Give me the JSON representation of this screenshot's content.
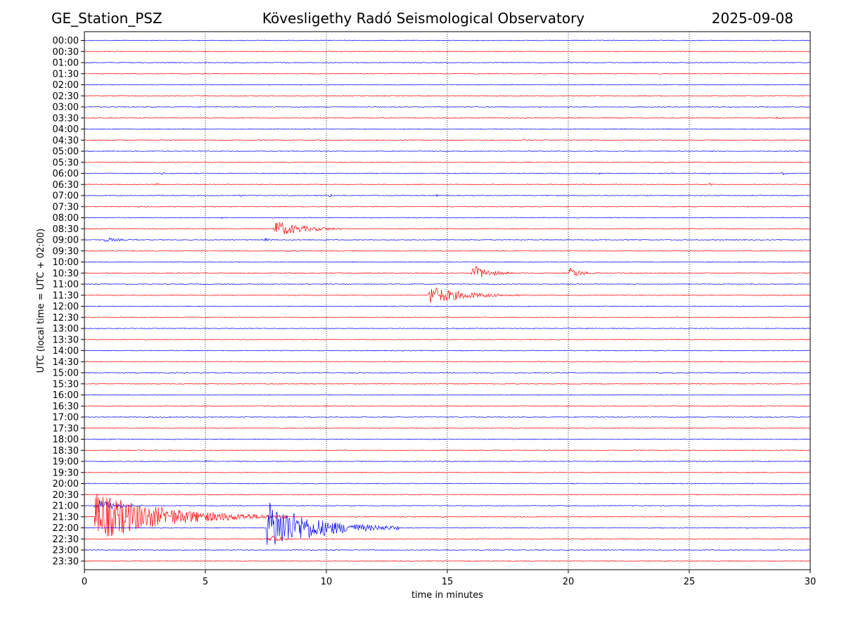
{
  "header": {
    "station": "GE_Station_PSZ",
    "observatory": "Kövesligethy Radó Seismological Observatory",
    "date": "2025-09-08"
  },
  "chart_data": {
    "type": "line",
    "title": "Kövesligethy Radó Seismological Observatory",
    "xlabel": "time in minutes",
    "ylabel": "UTC (local time = UTC + 02:00)",
    "xlim": [
      0,
      30
    ],
    "xticks": [
      0,
      5,
      10,
      15,
      20,
      25,
      30
    ],
    "grid": "vertical dotted",
    "colors": [
      "#0000ff",
      "#ff0000"
    ],
    "rows": [
      {
        "label": "00:00",
        "events": []
      },
      {
        "label": "00:30",
        "events": []
      },
      {
        "label": "01:00",
        "events": []
      },
      {
        "label": "01:30",
        "events": []
      },
      {
        "label": "02:00",
        "events": []
      },
      {
        "label": "02:30",
        "events": []
      },
      {
        "label": "03:00",
        "events": []
      },
      {
        "label": "03:30",
        "events": [
          {
            "t": 28.5,
            "dur": 0.4,
            "amp": 0.2
          }
        ]
      },
      {
        "label": "04:00",
        "events": []
      },
      {
        "label": "04:30",
        "events": [
          {
            "t": 19.0,
            "dur": 0.1,
            "amp": 0.2
          }
        ]
      },
      {
        "label": "05:00",
        "events": []
      },
      {
        "label": "05:30",
        "events": []
      },
      {
        "label": "06:00",
        "events": [
          {
            "t": 3.1,
            "dur": 0.3,
            "amp": 0.3
          },
          {
            "t": 21.2,
            "dur": 0.2,
            "amp": 0.3
          },
          {
            "t": 24.2,
            "dur": 0.2,
            "amp": 0.25
          },
          {
            "t": 25.8,
            "dur": 0.2,
            "amp": 0.25
          },
          {
            "t": 28.8,
            "dur": 0.3,
            "amp": 0.25
          }
        ]
      },
      {
        "label": "06:30",
        "events": [
          {
            "t": 2.9,
            "dur": 0.2,
            "amp": 0.25
          },
          {
            "t": 21.2,
            "dur": 0.2,
            "amp": 0.25
          },
          {
            "t": 25.8,
            "dur": 0.2,
            "amp": 0.35
          }
        ]
      },
      {
        "label": "07:00",
        "events": [
          {
            "t": 3.1,
            "dur": 0.2,
            "amp": 0.35
          },
          {
            "t": 6.4,
            "dur": 0.2,
            "amp": 0.35
          },
          {
            "t": 10.1,
            "dur": 0.2,
            "amp": 0.45
          },
          {
            "t": 14.5,
            "dur": 0.2,
            "amp": 0.25
          }
        ]
      },
      {
        "label": "07:30",
        "events": [
          {
            "t": 21.0,
            "dur": 0.1,
            "amp": 0.35
          }
        ]
      },
      {
        "label": "08:00",
        "events": [
          {
            "t": 5.6,
            "dur": 0.3,
            "amp": 0.2
          }
        ]
      },
      {
        "label": "08:30",
        "events": [
          {
            "t": 7.8,
            "dur": 3.0,
            "amp": 0.9
          }
        ]
      },
      {
        "label": "09:00",
        "events": [
          {
            "t": 0.8,
            "dur": 1.5,
            "amp": 0.25
          },
          {
            "t": 7.4,
            "dur": 0.6,
            "amp": 0.2
          }
        ]
      },
      {
        "label": "09:30",
        "events": []
      },
      {
        "label": "10:00",
        "events": []
      },
      {
        "label": "10:30",
        "events": [
          {
            "t": 16.0,
            "dur": 1.8,
            "amp": 0.9
          },
          {
            "t": 20.0,
            "dur": 1.2,
            "amp": 0.7
          }
        ]
      },
      {
        "label": "11:00",
        "events": []
      },
      {
        "label": "11:30",
        "events": [
          {
            "t": 14.2,
            "dur": 3.8,
            "amp": 1.0
          }
        ]
      },
      {
        "label": "12:00",
        "events": []
      },
      {
        "label": "12:30",
        "events": []
      },
      {
        "label": "13:00",
        "events": []
      },
      {
        "label": "13:30",
        "events": []
      },
      {
        "label": "14:00",
        "events": []
      },
      {
        "label": "14:30",
        "events": []
      },
      {
        "label": "15:00",
        "events": []
      },
      {
        "label": "15:30",
        "events": []
      },
      {
        "label": "16:00",
        "events": []
      },
      {
        "label": "16:30",
        "events": []
      },
      {
        "label": "17:00",
        "events": [
          {
            "t": 24.8,
            "dur": 0.2,
            "amp": 0.2
          }
        ]
      },
      {
        "label": "17:30",
        "events": []
      },
      {
        "label": "18:00",
        "events": []
      },
      {
        "label": "18:30",
        "events": []
      },
      {
        "label": "19:00",
        "events": [
          {
            "t": 5.0,
            "dur": 0.3,
            "amp": 0.2
          }
        ]
      },
      {
        "label": "19:30",
        "events": []
      },
      {
        "label": "20:00",
        "events": []
      },
      {
        "label": "20:30",
        "events": []
      },
      {
        "label": "21:00",
        "events": [
          {
            "t": 0.4,
            "dur": 2.0,
            "amp": 0.8
          }
        ]
      },
      {
        "label": "21:30",
        "events": [
          {
            "t": 0.4,
            "dur": 8.0,
            "amp": 2.6
          }
        ]
      },
      {
        "label": "22:00",
        "events": [
          {
            "t": 7.5,
            "dur": 5.5,
            "amp": 2.8
          }
        ]
      },
      {
        "label": "22:30",
        "events": [
          {
            "t": 7.6,
            "dur": 1.0,
            "amp": 0.6
          }
        ]
      },
      {
        "label": "23:00",
        "events": []
      },
      {
        "label": "23:30",
        "events": []
      }
    ]
  }
}
